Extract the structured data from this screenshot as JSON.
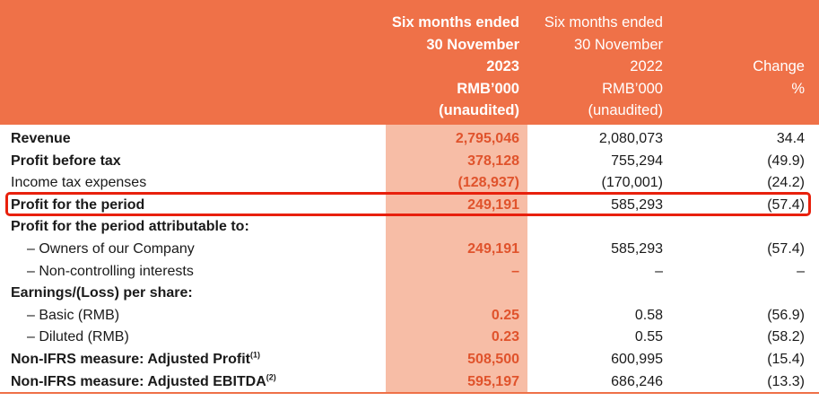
{
  "header": {
    "col2023": [
      "Six months ended",
      "30 November",
      "2023",
      "RMB’000",
      "(unaudited)"
    ],
    "col2022": [
      "Six months ended",
      "30 November",
      "2022",
      "RMB’000",
      "(unaudited)"
    ],
    "change": [
      "Change",
      "%"
    ]
  },
  "rows": [
    {
      "label": "Revenue",
      "v2023": "2,795,046",
      "v2022": "2,080,073",
      "change": "34.4"
    },
    {
      "label": "Profit before tax",
      "v2023": "378,128",
      "v2022": "755,294",
      "change": "(49.9)"
    },
    {
      "label": "Income tax expenses",
      "v2023": "(128,937)",
      "v2022": "(170,001)",
      "change": "(24.2)"
    },
    {
      "label": "Profit for the period",
      "v2023": "249,191",
      "v2022": "585,293",
      "change": "(57.4)"
    },
    {
      "label": "Profit for the period attributable to:",
      "v2023": "",
      "v2022": "",
      "change": ""
    },
    {
      "label": "– Owners of our Company",
      "v2023": "249,191",
      "v2022": "585,293",
      "change": "(57.4)"
    },
    {
      "label": "– Non-controlling interests",
      "v2023": "–",
      "v2022": "–",
      "change": "–"
    },
    {
      "label": "Earnings/(Loss) per share:",
      "v2023": "",
      "v2022": "",
      "change": ""
    },
    {
      "label": "– Basic (RMB)",
      "v2023": "0.25",
      "v2022": "0.58",
      "change": "(56.9)"
    },
    {
      "label": "– Diluted (RMB)",
      "v2023": "0.23",
      "v2022": "0.55",
      "change": "(58.2)"
    },
    {
      "label": "Non-IFRS measure: Adjusted Profit",
      "sup": "(1)",
      "v2023": "508,500",
      "v2022": "600,995",
      "change": "(15.4)"
    },
    {
      "label": "Non-IFRS measure: Adjusted EBITDA",
      "sup": "(2)",
      "v2023": "595,197",
      "v2022": "686,246",
      "change": "(13.3)"
    }
  ]
}
